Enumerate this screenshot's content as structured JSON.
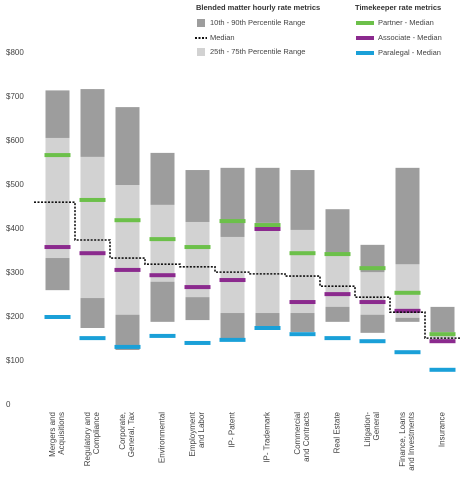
{
  "chart_data": {
    "type": "range-bar",
    "categories": [
      [
        "Mergers and",
        "Acquisitions"
      ],
      [
        "Regulatory and",
        "Compliance"
      ],
      [
        "Corporate,",
        "General, Tax"
      ],
      [
        "Environmental"
      ],
      [
        "Employment",
        "and Labor"
      ],
      [
        "IP- Patent"
      ],
      [
        "IP- Trademark"
      ],
      [
        "Commercial",
        "and Contracts"
      ],
      [
        "Real Estate"
      ],
      [
        "Litigation-",
        "General"
      ],
      [
        "Finance, Loans",
        "and Investments"
      ],
      [
        "Insurance"
      ]
    ],
    "legend_titles": [
      "Blended matter hourly rate metrics",
      "Timekeeper rate metrics"
    ],
    "ranges": [
      {
        "name": "10th - 90th Percentile Range",
        "color": "#9d9d9d",
        "low": [
          261,
          175,
          125,
          189,
          193,
          148,
          177,
          166,
          189,
          164,
          189,
          141
        ],
        "high": [
          715,
          718,
          677,
          573,
          534,
          539,
          539,
          534,
          445,
          364,
          539,
          223
        ]
      },
      {
        "name": "25th - 75th Percentile Range",
        "color": "#d2d2d2",
        "low": [
          334,
          243,
          205,
          280,
          245,
          209,
          209,
          209,
          223,
          205,
          198,
          141
        ],
        "high": [
          607,
          564,
          500,
          455,
          416,
          382,
          414,
          398,
          341,
          302,
          320,
          166
        ]
      }
    ],
    "median": {
      "name": "Median",
      "color": "#111111",
      "values": [
        461,
        375,
        334,
        320,
        314,
        302,
        298,
        293,
        270,
        245,
        211,
        152
      ]
    },
    "series": [
      {
        "name": "Partner - Median",
        "color": "#6cc04a",
        "values": [
          568,
          466,
          420,
          377,
          359,
          418,
          409,
          345,
          343,
          311,
          255,
          161
        ]
      },
      {
        "name": "Associate - Median",
        "color": "#8b2a8e",
        "values": [
          359,
          345,
          307,
          295,
          268,
          284,
          400,
          234,
          252,
          234,
          214,
          145
        ]
      },
      {
        "name": "Paralegal - Median",
        "color": "#1aa0d8",
        "values": [
          200,
          152,
          132,
          157,
          141,
          148,
          175,
          161,
          152,
          145,
          120,
          80
        ]
      }
    ],
    "ylim": [
      0,
      800
    ],
    "yticks": [
      {
        "value": 0,
        "label": "0"
      },
      {
        "value": 100,
        "label": "$100"
      },
      {
        "value": 200,
        "label": "$200"
      },
      {
        "value": 300,
        "label": "$300"
      },
      {
        "value": 400,
        "label": "$400"
      },
      {
        "value": 500,
        "label": "$500"
      },
      {
        "value": 600,
        "label": "$600"
      },
      {
        "value": 700,
        "label": "$700"
      },
      {
        "value": 800,
        "label": "$800"
      }
    ]
  }
}
